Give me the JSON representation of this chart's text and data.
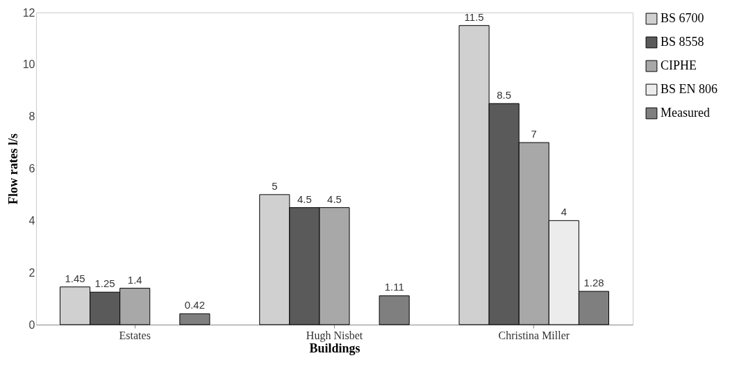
{
  "chart_data": {
    "type": "bar",
    "xlabel": "Buildings",
    "ylabel": "Flow rates l/s",
    "categories": [
      "Estates",
      "Hugh Nisbet",
      "Christina Miller"
    ],
    "series": [
      {
        "name": "BS 6700",
        "color": "#d0d0d0",
        "values": [
          1.45,
          5,
          11.5
        ]
      },
      {
        "name": "BS 8558",
        "color": "#5a5a5a",
        "values": [
          1.25,
          4.5,
          8.5
        ]
      },
      {
        "name": "CIPHE",
        "color": "#a8a8a8",
        "values": [
          1.4,
          4.5,
          7
        ]
      },
      {
        "name": "BS EN 806",
        "color": "#ececec",
        "values": [
          null,
          null,
          4
        ]
      },
      {
        "name": "Measured",
        "color": "#7f7f7f",
        "values": [
          0.42,
          1.11,
          1.28
        ]
      }
    ],
    "ylim": [
      0,
      12
    ],
    "yticks": [
      0,
      2,
      4,
      6,
      8,
      10,
      12
    ],
    "grid": false,
    "legend": "right",
    "data_labels": true
  }
}
